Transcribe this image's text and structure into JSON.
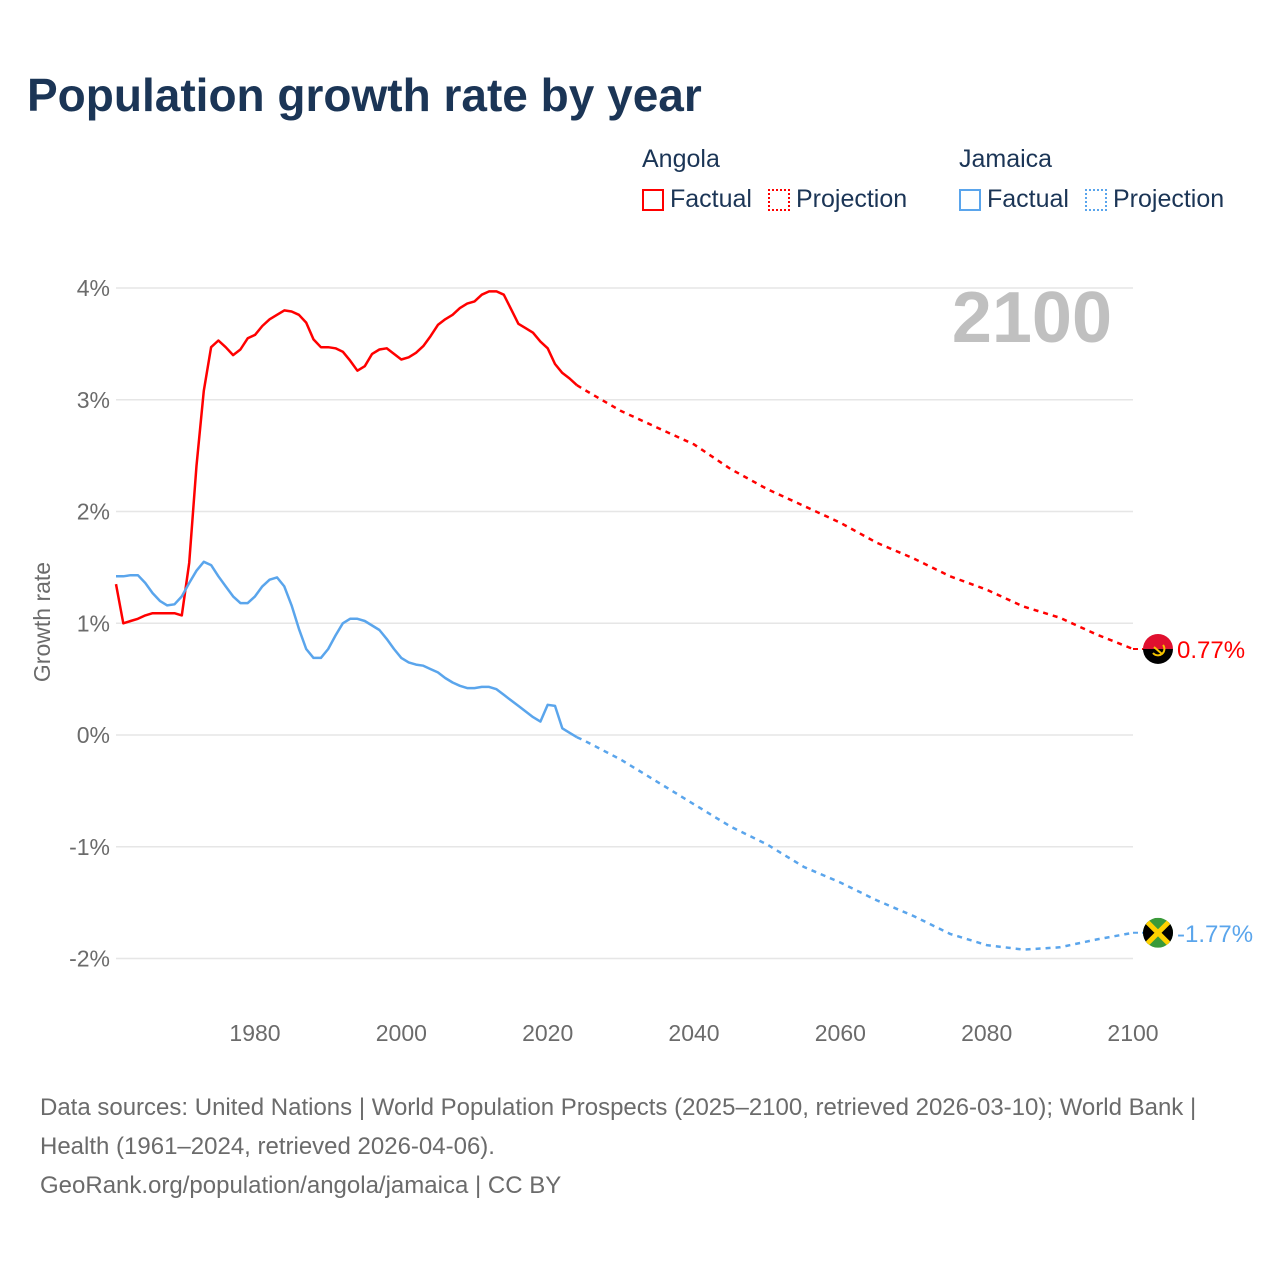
{
  "title": "Population growth rate by year",
  "legend": {
    "groups": [
      {
        "name": "Angola",
        "factual": "Factual",
        "projection": "Projection",
        "color": "#ff0000"
      },
      {
        "name": "Jamaica",
        "factual": "Factual",
        "projection": "Projection",
        "color": "#5aa5ec"
      }
    ]
  },
  "year_label": "2100",
  "footer": {
    "sources": "Data sources: United Nations | World Population Prospects (2025–2100, retrieved 2026-03-10); World Bank | Health (1961–2024, retrieved 2026-04-06).",
    "credit": "GeoRank.org/population/angola/jamaica | CC BY"
  },
  "chart_data": {
    "type": "line",
    "title": "Population growth rate by year",
    "xlabel": "",
    "ylabel": "Growth rate",
    "xlim": [
      1961,
      2100
    ],
    "ylim": [
      -2.4,
      4.2
    ],
    "x_ticks": [
      1980,
      2000,
      2020,
      2040,
      2060,
      2080,
      2100
    ],
    "y_ticks": [
      {
        "v": 4,
        "label": "4%"
      },
      {
        "v": 3,
        "label": "3%"
      },
      {
        "v": 2,
        "label": "2%"
      },
      {
        "v": 1,
        "label": "1%"
      },
      {
        "v": 0,
        "label": "0%"
      },
      {
        "v": -1,
        "label": "-1%"
      },
      {
        "v": -2,
        "label": "-2%"
      }
    ],
    "grid": true,
    "legend_position": "top-right",
    "series": [
      {
        "name": "Angola",
        "color": "#ff0000",
        "end_label": "0.77%",
        "factual": {
          "x": [
            1961,
            1962,
            1963,
            1964,
            1965,
            1966,
            1967,
            1968,
            1969,
            1970,
            1971,
            1972,
            1973,
            1974,
            1975,
            1976,
            1977,
            1978,
            1979,
            1980,
            1981,
            1982,
            1983,
            1984,
            1985,
            1986,
            1987,
            1988,
            1989,
            1990,
            1991,
            1992,
            1993,
            1994,
            1995,
            1996,
            1997,
            1998,
            1999,
            2000,
            2001,
            2002,
            2003,
            2004,
            2005,
            2006,
            2007,
            2008,
            2009,
            2010,
            2011,
            2012,
            2013,
            2014,
            2015,
            2016,
            2017,
            2018,
            2019,
            2020,
            2021,
            2022,
            2023,
            2024
          ],
          "y": [
            1.35,
            1.0,
            1.02,
            1.04,
            1.07,
            1.09,
            1.09,
            1.09,
            1.09,
            1.07,
            1.54,
            2.41,
            3.08,
            3.47,
            3.53,
            3.47,
            3.4,
            3.45,
            3.55,
            3.58,
            3.66,
            3.72,
            3.76,
            3.8,
            3.79,
            3.76,
            3.69,
            3.54,
            3.47,
            3.47,
            3.46,
            3.43,
            3.35,
            3.26,
            3.3,
            3.41,
            3.45,
            3.46,
            3.41,
            3.36,
            3.38,
            3.42,
            3.48,
            3.57,
            3.67,
            3.72,
            3.76,
            3.82,
            3.86,
            3.88,
            3.94,
            3.97,
            3.97,
            3.94,
            3.81,
            3.68,
            3.64,
            3.6,
            3.52,
            3.46,
            3.32,
            3.24,
            3.19,
            3.13
          ]
        },
        "projection": {
          "x": [
            2024,
            2025,
            2030,
            2035,
            2040,
            2045,
            2050,
            2055,
            2060,
            2065,
            2070,
            2075,
            2080,
            2085,
            2090,
            2095,
            2100
          ],
          "y": [
            3.13,
            3.09,
            2.9,
            2.75,
            2.6,
            2.38,
            2.2,
            2.05,
            1.9,
            1.72,
            1.58,
            1.42,
            1.3,
            1.15,
            1.05,
            0.9,
            0.77
          ]
        }
      },
      {
        "name": "Jamaica",
        "color": "#5aa5ec",
        "end_label": "-1.77%",
        "factual": {
          "x": [
            1961,
            1962,
            1963,
            1964,
            1965,
            1966,
            1967,
            1968,
            1969,
            1970,
            1971,
            1972,
            1973,
            1974,
            1975,
            1976,
            1977,
            1978,
            1979,
            1980,
            1981,
            1982,
            1983,
            1984,
            1985,
            1986,
            1987,
            1988,
            1989,
            1990,
            1991,
            1992,
            1993,
            1994,
            1995,
            1996,
            1997,
            1998,
            1999,
            2000,
            2001,
            2002,
            2003,
            2004,
            2005,
            2006,
            2007,
            2008,
            2009,
            2010,
            2011,
            2012,
            2013,
            2014,
            2015,
            2016,
            2017,
            2018,
            2019,
            2020,
            2021,
            2022,
            2023,
            2024
          ],
          "y": [
            1.42,
            1.42,
            1.43,
            1.43,
            1.36,
            1.27,
            1.2,
            1.16,
            1.17,
            1.24,
            1.36,
            1.47,
            1.55,
            1.52,
            1.42,
            1.33,
            1.24,
            1.18,
            1.18,
            1.24,
            1.33,
            1.39,
            1.41,
            1.33,
            1.16,
            0.95,
            0.77,
            0.69,
            0.69,
            0.77,
            0.89,
            1.0,
            1.04,
            1.04,
            1.02,
            0.98,
            0.94,
            0.86,
            0.77,
            0.69,
            0.65,
            0.63,
            0.62,
            0.59,
            0.56,
            0.51,
            0.47,
            0.44,
            0.42,
            0.42,
            0.43,
            0.43,
            0.41,
            0.36,
            0.31,
            0.26,
            0.21,
            0.16,
            0.12,
            0.27,
            0.26,
            0.06,
            0.02,
            -0.02
          ]
        },
        "projection": {
          "x": [
            2024,
            2025,
            2030,
            2035,
            2040,
            2045,
            2050,
            2055,
            2060,
            2065,
            2070,
            2075,
            2080,
            2085,
            2090,
            2095,
            2100
          ],
          "y": [
            -0.02,
            -0.05,
            -0.22,
            -0.42,
            -0.62,
            -0.82,
            -0.98,
            -1.18,
            -1.32,
            -1.48,
            -1.62,
            -1.78,
            -1.88,
            -1.92,
            -1.9,
            -1.83,
            -1.77
          ]
        }
      }
    ]
  }
}
